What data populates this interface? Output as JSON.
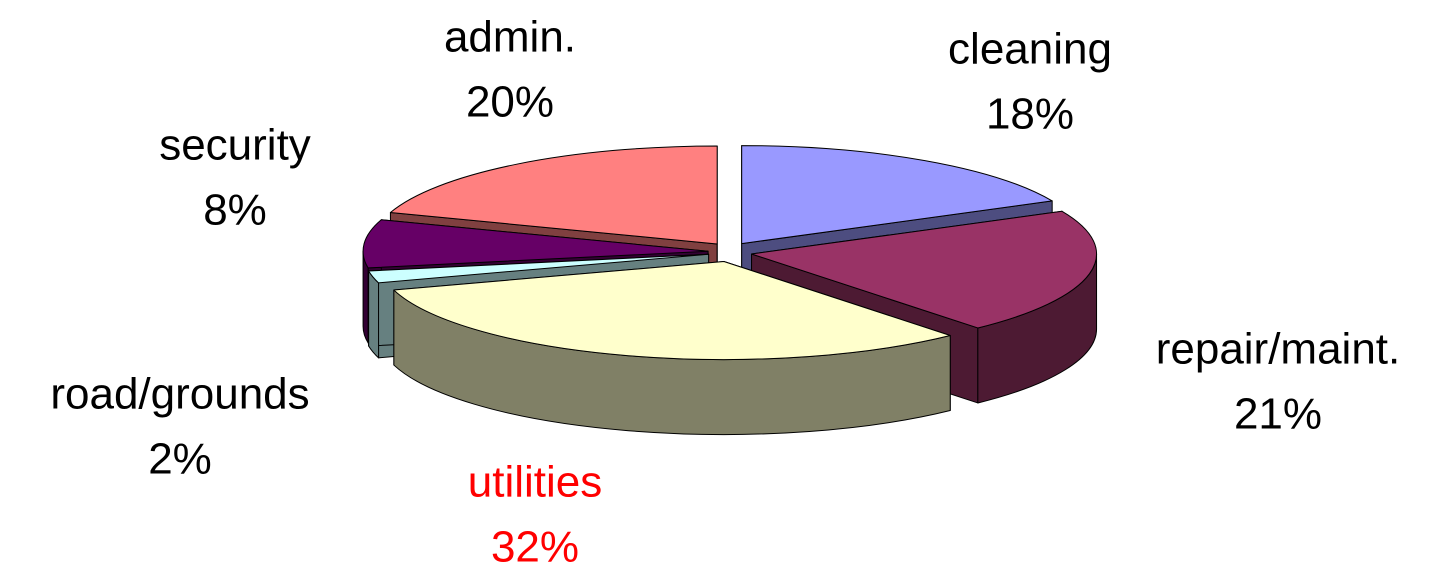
{
  "chart_data": {
    "type": "pie3d",
    "categories": [
      "cleaning",
      "repair/maint.",
      "utilities",
      "road/grounds",
      "security",
      "admin."
    ],
    "values": [
      18,
      21,
      32,
      2,
      8,
      20
    ],
    "value_labels": [
      "18%",
      "21%",
      "32%",
      "2%",
      "8%",
      "20%"
    ],
    "colors": [
      "#9999ff",
      "#993366",
      "#ffffcc",
      "#ccffff",
      "#660066",
      "#ff8080"
    ],
    "label_colors": [
      "#000000",
      "#000000",
      "#ff0000",
      "#000000",
      "#000000",
      "#000000"
    ],
    "exploded": true
  }
}
